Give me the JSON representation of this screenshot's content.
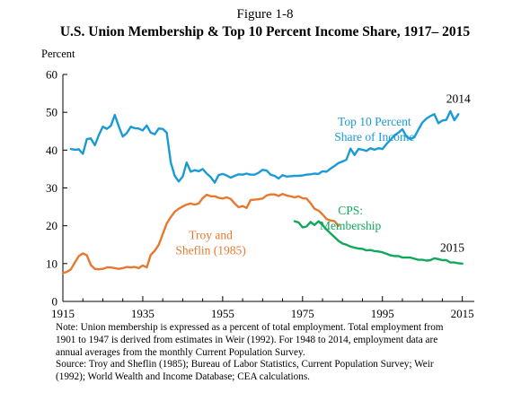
{
  "figure_label": "Figure 1-8",
  "notes": [
    "Note: Union membership is expressed as a percent of total employment. Total employment from",
    "1901 to 1947 is derived from estimates in Weir (1992). For 1948 to 2014, employment data are",
    "annual averages from the monthly Current Population Survey.",
    "Source: Troy and Sheflin (1985); Bureau of Labor Statistics, Current Population Survey; Weir",
    "(1992); World Wealth and Income Database; CEA calculations."
  ],
  "colors": {
    "top10": "#1a9ad6",
    "troy": "#e8782f",
    "cps": "#10a85a",
    "axis": "#000000"
  },
  "chart_data": {
    "type": "line",
    "title": "U.S. Union Membership & Top 10 Percent Income Share, 1917– 2015",
    "ylabel": "Percent",
    "xlabel": "",
    "xlim": [
      1915,
      2018
    ],
    "ylim": [
      0,
      60
    ],
    "x_ticks": [
      1915,
      1935,
      1955,
      1975,
      1995,
      2015
    ],
    "y_ticks": [
      0,
      10,
      20,
      30,
      40,
      50,
      60
    ],
    "grid": false,
    "annotations": [
      {
        "text": "2014",
        "x": 2014,
        "y": 52.5
      },
      {
        "text": "2015",
        "x": 2012.5,
        "y": 13.2
      }
    ],
    "series": [
      {
        "name": "Top 10 Percent Share of Income",
        "label_lines": [
          "Top 10 Percent",
          "Share of Income"
        ],
        "label_pos": {
          "x": 1993,
          "y": 46.5
        },
        "color": "#1a9ad6",
        "x": [
          1917,
          1918,
          1919,
          1920,
          1921,
          1922,
          1923,
          1924,
          1925,
          1926,
          1927,
          1928,
          1929,
          1930,
          1931,
          1932,
          1933,
          1934,
          1935,
          1936,
          1937,
          1938,
          1939,
          1940,
          1941,
          1942,
          1943,
          1944,
          1945,
          1946,
          1947,
          1948,
          1949,
          1950,
          1951,
          1952,
          1953,
          1954,
          1955,
          1956,
          1957,
          1958,
          1959,
          1960,
          1961,
          1962,
          1963,
          1964,
          1965,
          1966,
          1967,
          1968,
          1969,
          1970,
          1971,
          1972,
          1973,
          1974,
          1975,
          1976,
          1977,
          1978,
          1979,
          1980,
          1981,
          1982,
          1983,
          1984,
          1985,
          1986,
          1987,
          1988,
          1989,
          1990,
          1991,
          1992,
          1993,
          1994,
          1995,
          1996,
          1997,
          1998,
          1999,
          2000,
          2001,
          2002,
          2003,
          2004,
          2005,
          2006,
          2007,
          2008,
          2009,
          2010,
          2011,
          2012,
          2013,
          2014
        ],
        "y": [
          40.3,
          40.1,
          40.2,
          39.0,
          42.9,
          43.1,
          41.3,
          44.0,
          46.2,
          45.6,
          46.4,
          49.3,
          46.2,
          43.6,
          44.5,
          46.2,
          45.8,
          45.7,
          45.2,
          46.5,
          44.6,
          44.2,
          45.7,
          45.6,
          44.6,
          36.7,
          33.2,
          31.7,
          33.0,
          36.7,
          34.3,
          34.7,
          34.4,
          35.0,
          33.8,
          32.9,
          31.4,
          33.4,
          33.7,
          33.3,
          32.7,
          33.2,
          33.6,
          33.5,
          33.8,
          33.5,
          33.5,
          34.0,
          34.8,
          34.6,
          33.5,
          33.2,
          32.5,
          33.4,
          33.0,
          33.1,
          33.2,
          33.2,
          33.3,
          33.5,
          33.6,
          33.8,
          33.7,
          34.4,
          34.3,
          35.1,
          35.8,
          36.6,
          37.0,
          37.5,
          40.4,
          38.7,
          40.3,
          40.1,
          39.8,
          40.5,
          40.1,
          40.5,
          40.3,
          41.6,
          42.7,
          43.9,
          44.6,
          45.5,
          43.6,
          42.9,
          43.4,
          45.4,
          47.3,
          48.3,
          49.0,
          49.5,
          47.1,
          47.8,
          48.0,
          50.3,
          47.9,
          49.5
        ]
      },
      {
        "name": "Troy and Sheflin (1985)",
        "label_lines": [
          "Troy and",
          "Sheflin (1985)"
        ],
        "label_pos": {
          "x": 1952,
          "y": 16.5
        },
        "color": "#e8782f",
        "x": [
          1915,
          1916,
          1917,
          1918,
          1919,
          1920,
          1921,
          1922,
          1923,
          1924,
          1925,
          1926,
          1927,
          1928,
          1929,
          1930,
          1931,
          1932,
          1933,
          1934,
          1935,
          1936,
          1937,
          1938,
          1939,
          1940,
          1941,
          1942,
          1943,
          1944,
          1945,
          1946,
          1947,
          1948,
          1949,
          1950,
          1951,
          1952,
          1953,
          1954,
          1955,
          1956,
          1957,
          1958,
          1959,
          1960,
          1961,
          1962,
          1963,
          1964,
          1965,
          1966,
          1967,
          1968,
          1969,
          1970,
          1971,
          1972,
          1973,
          1974,
          1975,
          1976,
          1977,
          1978,
          1979,
          1980,
          1981,
          1982,
          1983,
          1984
        ],
        "y": [
          7.5,
          7.8,
          8.5,
          10.3,
          12.0,
          12.7,
          12.2,
          9.6,
          8.6,
          8.5,
          8.6,
          9.0,
          9.0,
          8.8,
          8.6,
          8.8,
          9.1,
          9.0,
          9.1,
          8.8,
          9.5,
          9.0,
          12.3,
          13.4,
          15.0,
          17.8,
          20.6,
          22.3,
          23.7,
          24.5,
          25.1,
          25.6,
          25.9,
          25.6,
          25.9,
          27.3,
          28.2,
          27.8,
          27.8,
          27.4,
          27.2,
          27.5,
          27.1,
          25.9,
          24.9,
          25.2,
          24.7,
          26.8,
          26.9,
          27.0,
          27.2,
          28.0,
          28.3,
          28.3,
          27.9,
          28.4,
          28.0,
          27.8,
          27.5,
          27.8,
          27.3,
          27.2,
          26.0,
          24.5,
          24.0,
          23.0,
          21.8,
          21.4,
          21.2,
          20.0
        ]
      },
      {
        "name": "CPS: Membership",
        "label_lines": [
          "CPS:",
          "Membership"
        ],
        "label_pos": {
          "x": 1987,
          "y": 23.0
        },
        "color": "#10a85a",
        "x": [
          1973,
          1974,
          1975,
          1976,
          1977,
          1978,
          1979,
          1980,
          1981,
          1982,
          1983,
          1984,
          1985,
          1986,
          1987,
          1988,
          1989,
          1990,
          1991,
          1992,
          1993,
          1994,
          1995,
          1996,
          1997,
          1998,
          1999,
          2000,
          2001,
          2002,
          2003,
          2004,
          2005,
          2006,
          2007,
          2008,
          2009,
          2010,
          2011,
          2012,
          2013,
          2014,
          2015
        ],
        "y": [
          21.2,
          20.9,
          19.6,
          19.8,
          21.0,
          20.2,
          21.2,
          20.2,
          19.0,
          18.0,
          17.0,
          16.0,
          15.3,
          15.0,
          14.5,
          14.2,
          14.0,
          13.9,
          13.5,
          13.6,
          13.3,
          13.2,
          13.0,
          12.6,
          12.2,
          12.0,
          12.0,
          11.6,
          11.6,
          11.6,
          11.3,
          11.0,
          11.0,
          10.8,
          10.9,
          11.4,
          11.2,
          10.9,
          10.9,
          10.3,
          10.3,
          10.1,
          10.0
        ]
      }
    ]
  }
}
